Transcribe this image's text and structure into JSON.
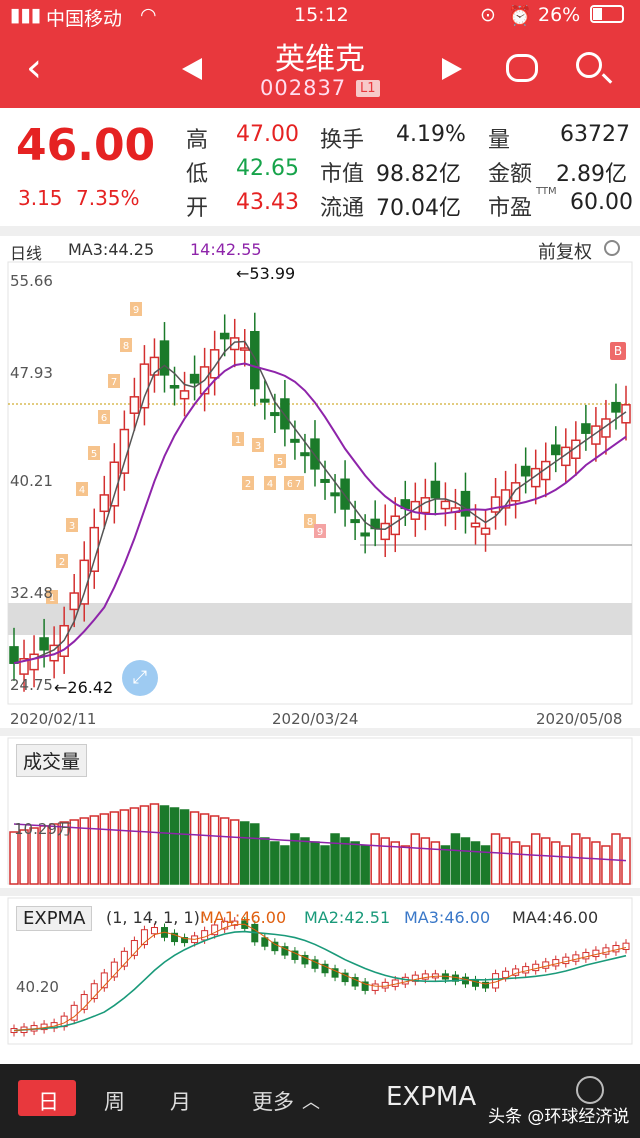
{
  "status_bar": {
    "carrier": "中国移动",
    "time": "15:12",
    "battery": "26%"
  },
  "header": {
    "title": "英维克",
    "code": "002837",
    "level_badge": "L1",
    "icons": [
      "back-chevron-icon",
      "prev-arrow-icon",
      "next-arrow-icon",
      "robot-icon",
      "search-icon"
    ]
  },
  "quote": {
    "price": "46.00",
    "change": "3.15",
    "change_pct": "7.35%",
    "stats": [
      {
        "label": "高",
        "value": "47.00",
        "tone": "red"
      },
      {
        "label": "换手",
        "value": "4.19%",
        "tone": "plain"
      },
      {
        "label": "量",
        "value": "63727",
        "tone": "plain"
      },
      {
        "label": "低",
        "value": "42.65",
        "tone": "green"
      },
      {
        "label": "市值",
        "value": "98.82亿",
        "tone": "plain"
      },
      {
        "label": "金额",
        "value": "2.89亿",
        "tone": "plain"
      },
      {
        "label": "开",
        "value": "43.43",
        "tone": "red"
      },
      {
        "label": "流通",
        "value": "70.04亿",
        "tone": "plain"
      },
      {
        "label": "市盈",
        "value": "60.00",
        "tone": "plain",
        "suffix": "TTM"
      }
    ]
  },
  "kline": {
    "period_label": "日线",
    "ma_label": "MA3:44.25",
    "crosshair_time": "14:42.55",
    "adjust_label": "前复权",
    "high_marker": "←53.99",
    "low_marker": "←26.42",
    "y_ticks": [
      "55.66",
      "47.93",
      "40.21",
      "32.48",
      "24.75"
    ],
    "x_ticks": [
      "2020/02/11",
      "2020/03/24",
      "2020/05/08"
    ],
    "buy_marker": "B",
    "counters_up": [
      "1",
      "2",
      "3",
      "4",
      "5",
      "6",
      "7",
      "8",
      "9"
    ],
    "counters_down": [
      "1",
      "2",
      "3",
      "4",
      "5",
      "6",
      "7",
      "8",
      "9"
    ],
    "colors": {
      "up": "#d32f2f",
      "down": "#1b7a2a",
      "ma": "#8e24aa",
      "ma_alt": "#555555"
    }
  },
  "volume": {
    "title": "成交量",
    "tick": "10.29万"
  },
  "expma": {
    "title": "EXPMA",
    "params": "(1, 14, 1, 1):",
    "lines": [
      {
        "label": "MA1:46.00",
        "color": "#e06010"
      },
      {
        "label": "MA2:42.51",
        "color": "#1a9a7a"
      },
      {
        "label": "MA3:46.00",
        "color": "#3a78c8"
      },
      {
        "label": "MA4:46.00",
        "color": "#333333"
      }
    ],
    "tick": "40.20"
  },
  "tabs": {
    "items": [
      "日",
      "周",
      "月",
      "更多"
    ],
    "active": "日",
    "indicator": "EXPMA",
    "watermark": "头条 @环球经济说"
  }
}
